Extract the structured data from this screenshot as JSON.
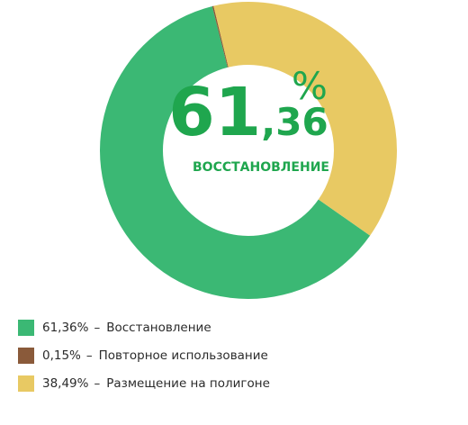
{
  "chart_data": {
    "type": "pie",
    "categories": [
      "Восстановление",
      "Повторное использование",
      "Размещение на полигоне"
    ],
    "values": [
      61.36,
      0.15,
      38.49
    ],
    "value_labels": [
      "61,36%",
      "0,15%",
      "38,49%"
    ],
    "colors": [
      "#3bb874",
      "#8a5a3a",
      "#e8c963"
    ],
    "legend_separator": "–",
    "center_integer": "61",
    "center_fraction": ",36",
    "center_unit": "%",
    "center_caption": "ВОССТАНОВЛЕНИЕ"
  }
}
